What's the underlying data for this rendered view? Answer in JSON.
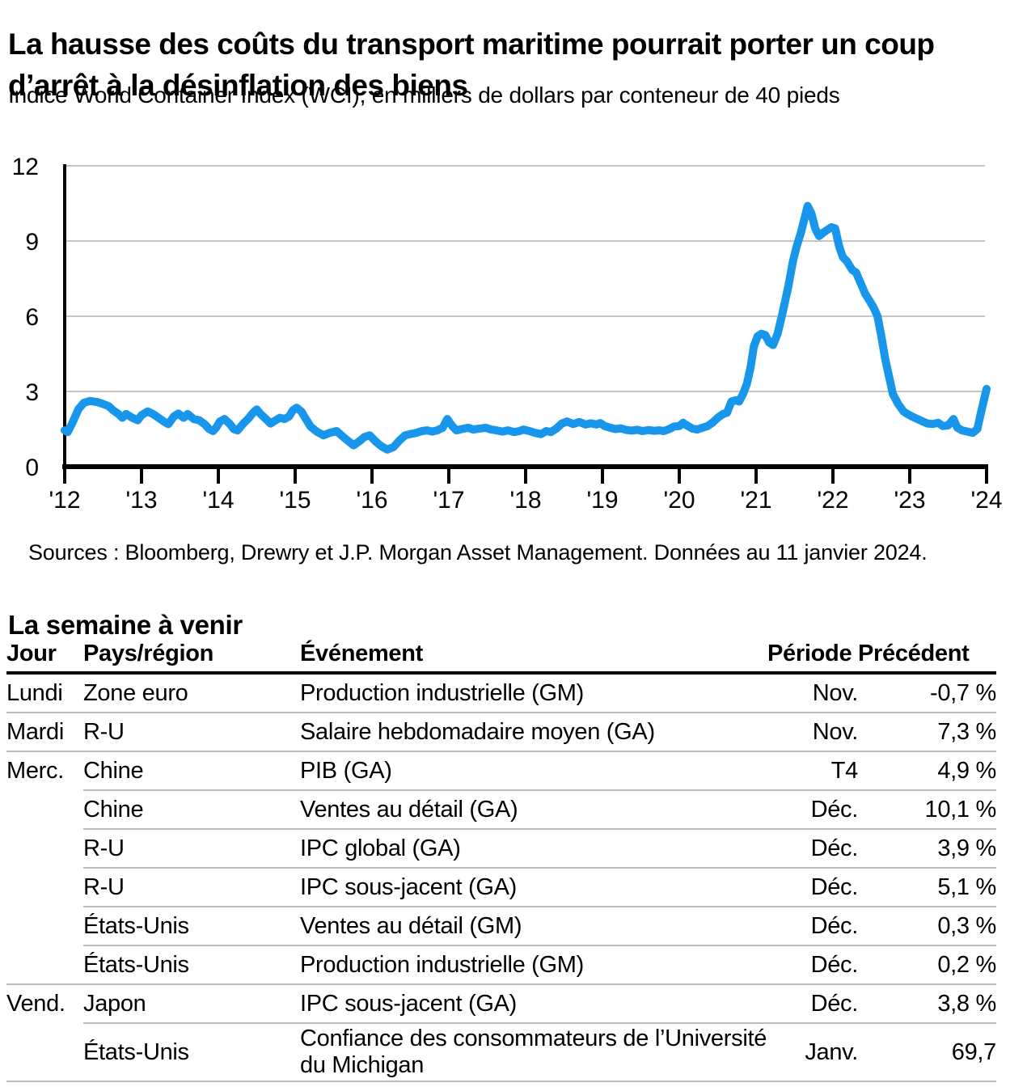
{
  "header": {
    "title_lines": [
      "La hausse des coûts du transport maritime pourrait porter un coup",
      "d’arrêt à la désinflation des biens"
    ],
    "subtitle": "Indice World Container Index (WCI), en milliers de dollars par conteneur de 40 pieds"
  },
  "chart_data": {
    "type": "line",
    "title": "La hausse des coûts du transport maritime pourrait porter un coup d’arrêt à la désinflation des biens",
    "subtitle": "Indice World Container Index (WCI), en milliers de dollars par conteneur de 40 pieds",
    "xlabel": "",
    "ylabel": "",
    "x_range": [
      2012,
      2024
    ],
    "ylim": [
      0,
      12
    ],
    "y_ticks": [
      0,
      3,
      6,
      9,
      12
    ],
    "x_tick_labels": [
      "'12",
      "'13",
      "'14",
      "'15",
      "'16",
      "'17",
      "'18",
      "'19",
      "'20",
      "'21",
      "'22",
      "'23",
      "'24"
    ],
    "grid": "horizontal",
    "legend": "none",
    "line_color": "#1796ec",
    "grid_color": "#c6c6c6",
    "axis_color": "#000000",
    "source": "Sources : Bloomberg, Drewry et J.P. Morgan Asset Management. Données au 11 janvier 2024.",
    "series": [
      {
        "name": "World Container Index (WCI), milliers de dollars par conteneur de 40 pieds",
        "points": [
          [
            2012.0,
            1.45
          ],
          [
            2012.04,
            1.38
          ],
          [
            2012.1,
            1.75
          ],
          [
            2012.18,
            2.3
          ],
          [
            2012.25,
            2.55
          ],
          [
            2012.33,
            2.62
          ],
          [
            2012.42,
            2.58
          ],
          [
            2012.5,
            2.5
          ],
          [
            2012.57,
            2.42
          ],
          [
            2012.63,
            2.25
          ],
          [
            2012.7,
            2.1
          ],
          [
            2012.75,
            1.95
          ],
          [
            2012.8,
            2.1
          ],
          [
            2012.88,
            1.95
          ],
          [
            2012.95,
            1.85
          ],
          [
            2013.0,
            2.05
          ],
          [
            2013.08,
            2.2
          ],
          [
            2013.15,
            2.1
          ],
          [
            2013.22,
            1.95
          ],
          [
            2013.3,
            1.78
          ],
          [
            2013.35,
            1.7
          ],
          [
            2013.42,
            2.0
          ],
          [
            2013.48,
            2.12
          ],
          [
            2013.55,
            1.95
          ],
          [
            2013.6,
            2.1
          ],
          [
            2013.68,
            1.9
          ],
          [
            2013.75,
            1.85
          ],
          [
            2013.82,
            1.7
          ],
          [
            2013.88,
            1.5
          ],
          [
            2013.93,
            1.42
          ],
          [
            2013.97,
            1.55
          ],
          [
            2014.02,
            1.8
          ],
          [
            2014.08,
            1.9
          ],
          [
            2014.15,
            1.7
          ],
          [
            2014.2,
            1.5
          ],
          [
            2014.25,
            1.45
          ],
          [
            2014.32,
            1.7
          ],
          [
            2014.4,
            1.95
          ],
          [
            2014.45,
            2.15
          ],
          [
            2014.5,
            2.28
          ],
          [
            2014.55,
            2.1
          ],
          [
            2014.62,
            1.9
          ],
          [
            2014.68,
            1.72
          ],
          [
            2014.73,
            1.82
          ],
          [
            2014.8,
            1.95
          ],
          [
            2014.86,
            1.9
          ],
          [
            2014.92,
            2.0
          ],
          [
            2014.97,
            2.25
          ],
          [
            2015.02,
            2.35
          ],
          [
            2015.08,
            2.2
          ],
          [
            2015.14,
            1.9
          ],
          [
            2015.2,
            1.6
          ],
          [
            2015.28,
            1.4
          ],
          [
            2015.37,
            1.25
          ],
          [
            2015.45,
            1.35
          ],
          [
            2015.54,
            1.42
          ],
          [
            2015.62,
            1.2
          ],
          [
            2015.7,
            1.0
          ],
          [
            2015.76,
            0.85
          ],
          [
            2015.83,
            1.0
          ],
          [
            2015.9,
            1.18
          ],
          [
            2015.97,
            1.25
          ],
          [
            2016.05,
            1.0
          ],
          [
            2016.12,
            0.82
          ],
          [
            2016.2,
            0.68
          ],
          [
            2016.28,
            0.78
          ],
          [
            2016.36,
            1.05
          ],
          [
            2016.43,
            1.25
          ],
          [
            2016.5,
            1.3
          ],
          [
            2016.58,
            1.35
          ],
          [
            2016.65,
            1.42
          ],
          [
            2016.72,
            1.45
          ],
          [
            2016.78,
            1.4
          ],
          [
            2016.85,
            1.45
          ],
          [
            2016.92,
            1.55
          ],
          [
            2016.98,
            1.9
          ],
          [
            2017.05,
            1.6
          ],
          [
            2017.1,
            1.45
          ],
          [
            2017.17,
            1.5
          ],
          [
            2017.25,
            1.55
          ],
          [
            2017.32,
            1.48
          ],
          [
            2017.4,
            1.52
          ],
          [
            2017.48,
            1.55
          ],
          [
            2017.55,
            1.48
          ],
          [
            2017.62,
            1.45
          ],
          [
            2017.7,
            1.4
          ],
          [
            2017.77,
            1.45
          ],
          [
            2017.85,
            1.38
          ],
          [
            2017.92,
            1.42
          ],
          [
            2017.97,
            1.48
          ],
          [
            2018.05,
            1.42
          ],
          [
            2018.12,
            1.35
          ],
          [
            2018.2,
            1.3
          ],
          [
            2018.27,
            1.42
          ],
          [
            2018.33,
            1.38
          ],
          [
            2018.4,
            1.52
          ],
          [
            2018.47,
            1.72
          ],
          [
            2018.54,
            1.8
          ],
          [
            2018.62,
            1.7
          ],
          [
            2018.7,
            1.78
          ],
          [
            2018.78,
            1.68
          ],
          [
            2018.85,
            1.73
          ],
          [
            2018.92,
            1.68
          ],
          [
            2018.97,
            1.74
          ],
          [
            2019.03,
            1.62
          ],
          [
            2019.1,
            1.55
          ],
          [
            2019.17,
            1.5
          ],
          [
            2019.24,
            1.53
          ],
          [
            2019.3,
            1.47
          ],
          [
            2019.38,
            1.44
          ],
          [
            2019.45,
            1.47
          ],
          [
            2019.52,
            1.42
          ],
          [
            2019.6,
            1.46
          ],
          [
            2019.67,
            1.43
          ],
          [
            2019.74,
            1.45
          ],
          [
            2019.8,
            1.42
          ],
          [
            2019.87,
            1.5
          ],
          [
            2019.93,
            1.6
          ],
          [
            2020.0,
            1.62
          ],
          [
            2020.05,
            1.75
          ],
          [
            2020.1,
            1.65
          ],
          [
            2020.17,
            1.52
          ],
          [
            2020.23,
            1.48
          ],
          [
            2020.3,
            1.55
          ],
          [
            2020.37,
            1.62
          ],
          [
            2020.43,
            1.75
          ],
          [
            2020.5,
            1.95
          ],
          [
            2020.57,
            2.1
          ],
          [
            2020.62,
            2.15
          ],
          [
            2020.68,
            2.6
          ],
          [
            2020.73,
            2.65
          ],
          [
            2020.78,
            2.6
          ],
          [
            2020.83,
            2.9
          ],
          [
            2020.88,
            3.3
          ],
          [
            2020.93,
            4.0
          ],
          [
            2020.97,
            4.8
          ],
          [
            2021.02,
            5.2
          ],
          [
            2021.07,
            5.3
          ],
          [
            2021.12,
            5.25
          ],
          [
            2021.17,
            4.95
          ],
          [
            2021.22,
            4.85
          ],
          [
            2021.28,
            5.3
          ],
          [
            2021.35,
            6.2
          ],
          [
            2021.42,
            7.2
          ],
          [
            2021.48,
            8.2
          ],
          [
            2021.53,
            8.8
          ],
          [
            2021.58,
            9.3
          ],
          [
            2021.63,
            9.9
          ],
          [
            2021.67,
            10.4
          ],
          [
            2021.72,
            10.1
          ],
          [
            2021.77,
            9.5
          ],
          [
            2021.82,
            9.2
          ],
          [
            2021.88,
            9.35
          ],
          [
            2021.93,
            9.45
          ],
          [
            2021.98,
            9.55
          ],
          [
            2022.03,
            9.5
          ],
          [
            2022.08,
            8.8
          ],
          [
            2022.13,
            8.35
          ],
          [
            2022.18,
            8.2
          ],
          [
            2022.25,
            7.85
          ],
          [
            2022.3,
            7.75
          ],
          [
            2022.35,
            7.4
          ],
          [
            2022.42,
            6.9
          ],
          [
            2022.48,
            6.6
          ],
          [
            2022.53,
            6.35
          ],
          [
            2022.58,
            6.0
          ],
          [
            2022.63,
            5.2
          ],
          [
            2022.68,
            4.3
          ],
          [
            2022.73,
            3.6
          ],
          [
            2022.78,
            2.9
          ],
          [
            2022.85,
            2.5
          ],
          [
            2022.92,
            2.2
          ],
          [
            2022.97,
            2.1
          ],
          [
            2023.03,
            2.0
          ],
          [
            2023.1,
            1.9
          ],
          [
            2023.17,
            1.8
          ],
          [
            2023.23,
            1.72
          ],
          [
            2023.3,
            1.7
          ],
          [
            2023.37,
            1.75
          ],
          [
            2023.43,
            1.62
          ],
          [
            2023.5,
            1.65
          ],
          [
            2023.57,
            1.9
          ],
          [
            2023.62,
            1.55
          ],
          [
            2023.68,
            1.45
          ],
          [
            2023.75,
            1.4
          ],
          [
            2023.82,
            1.35
          ],
          [
            2023.88,
            1.5
          ],
          [
            2023.93,
            2.2
          ],
          [
            2024.0,
            3.1
          ]
        ]
      }
    ]
  },
  "week": {
    "title": "La semaine à venir",
    "columns": [
      "Jour",
      "Pays/région",
      "Événement",
      "Période",
      "Précédent"
    ],
    "rows": [
      {
        "jour": "Lundi",
        "pays": "Zone euro",
        "evenement": "Production industrielle (GM)",
        "periode": "Nov.",
        "precedent": "-0,7 %",
        "sep": "full"
      },
      {
        "jour": "Mardi",
        "pays": "R-U",
        "evenement": "Salaire hebdomadaire moyen (GA)",
        "periode": "Nov.",
        "precedent": "7,3 %",
        "sep": "full"
      },
      {
        "jour": "Merc.",
        "pays": "Chine",
        "evenement": "PIB (GA)",
        "periode": "T4",
        "precedent": "4,9 %",
        "sep": "indent"
      },
      {
        "jour": "",
        "pays": "Chine",
        "evenement": "Ventes au détail (GA)",
        "periode": "Déc.",
        "precedent": "10,1 %",
        "sep": "indent"
      },
      {
        "jour": "",
        "pays": "R-U",
        "evenement": "IPC global (GA)",
        "periode": "Déc.",
        "precedent": "3,9 %",
        "sep": "indent"
      },
      {
        "jour": "",
        "pays": "R-U",
        "evenement": "IPC sous-jacent (GA)",
        "periode": "Déc.",
        "precedent": "5,1 %",
        "sep": "indent"
      },
      {
        "jour": "",
        "pays": "États-Unis",
        "evenement": "Ventes au détail (GM)",
        "periode": "Déc.",
        "precedent": "0,3 %",
        "sep": "indent"
      },
      {
        "jour": "",
        "pays": "États-Unis",
        "evenement": "Production industrielle (GM)",
        "periode": "Déc.",
        "precedent": "0,2 %",
        "sep": "full"
      },
      {
        "jour": "Vend.",
        "pays": "Japon",
        "evenement": "IPC sous-jacent (GA)",
        "periode": "Déc.",
        "precedent": "3,8 %",
        "sep": "indent"
      },
      {
        "jour": "",
        "pays": "États-Unis",
        "evenement": "Confiance des consommateurs de l’Université du Michigan",
        "periode": "Janv.",
        "precedent": "69,7",
        "sep": "full"
      }
    ]
  }
}
